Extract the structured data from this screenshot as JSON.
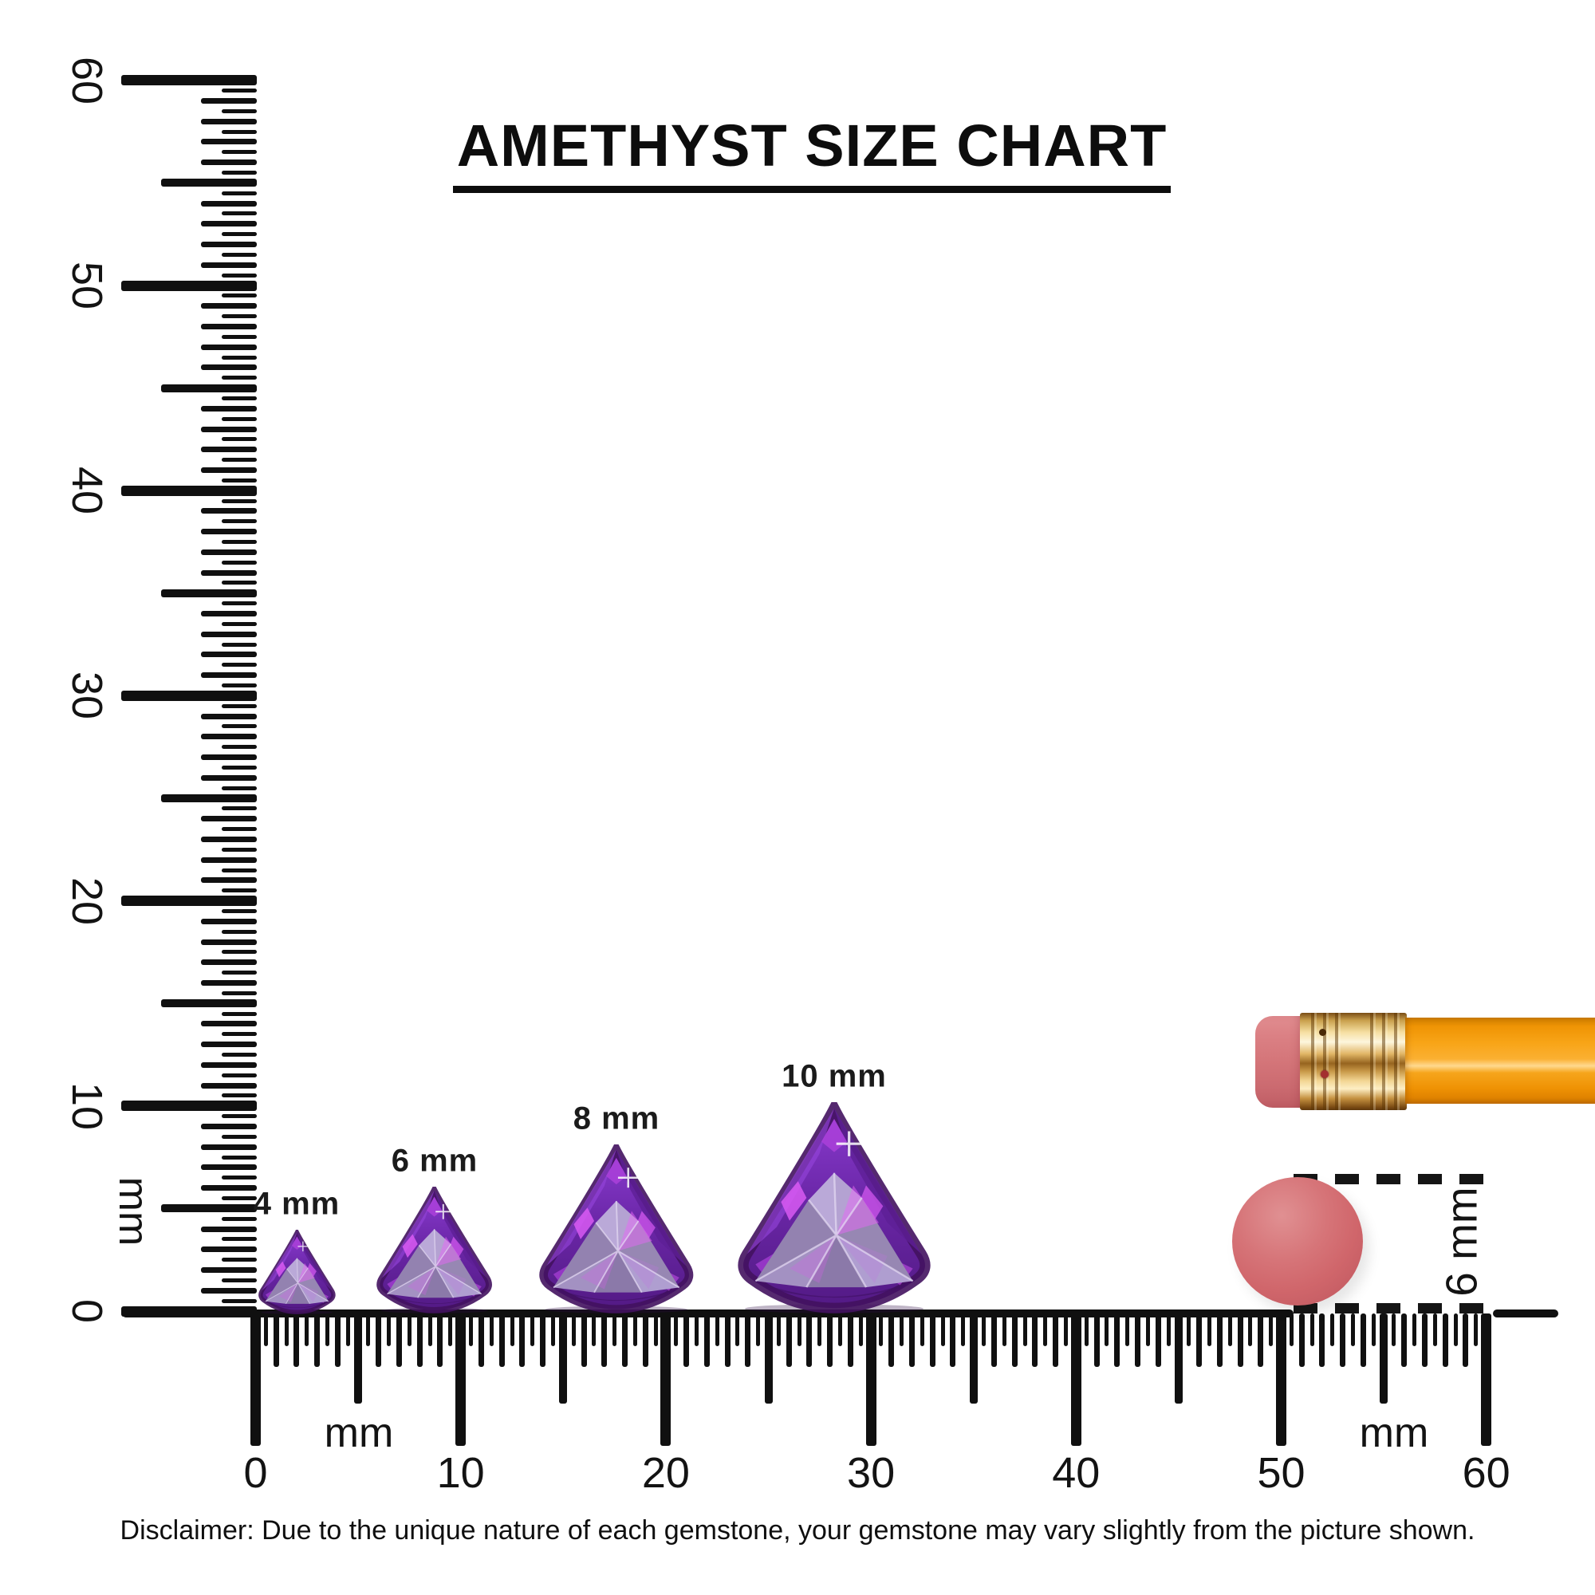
{
  "title": "AMETHYST SIZE CHART",
  "rulers": {
    "unit": "mm",
    "px_per_mm_note": "rulers span 0-60 mm with 0.5 mm ticks",
    "vertical": {
      "tick_labels": [
        "0",
        "10",
        "20",
        "30",
        "40",
        "50",
        "60"
      ],
      "unit_label": "mm",
      "range_mm": [
        0,
        60
      ]
    },
    "horizontal": {
      "tick_labels": [
        "0",
        "10",
        "20",
        "30",
        "40",
        "50",
        "60"
      ],
      "unit_label_left": "mm",
      "unit_label_right": "mm",
      "range_mm": [
        0,
        60
      ]
    }
  },
  "gems": [
    {
      "label": "4 mm",
      "size_mm": 4
    },
    {
      "label": "6 mm",
      "size_mm": 6
    },
    {
      "label": "8 mm",
      "size_mm": 8
    },
    {
      "label": "10 mm",
      "size_mm": 10
    }
  ],
  "eraser_measurement": {
    "label": "6 mm",
    "diameter_mm": 6
  },
  "pencil": {
    "eraser_color": "#d47579",
    "ferrule_color": "#e2b768",
    "body_color": "#f8a518"
  },
  "colors": {
    "ink": "#101010",
    "gem_deep": "#531a85",
    "gem_mid": "#6b27a8",
    "gem_bright": "#8a3bd0",
    "gem_flash": "#d85af2",
    "gem_table_light": "#bcadd6",
    "gem_table_dark": "#8d7ba6",
    "eraser_circle": "#d0666b"
  },
  "disclaimer": "Disclaimer: Due to the unique nature of each gemstone, your gemstone may vary slightly from the picture shown.",
  "chart_data": {
    "type": "table",
    "title": "AMETHYST SIZE CHART",
    "categories": [
      "4 mm",
      "6 mm",
      "8 mm",
      "10 mm"
    ],
    "values": [
      4,
      6,
      8,
      10
    ],
    "units": "mm",
    "cut": "trillion",
    "ruler_range_mm": [
      0,
      60
    ],
    "ruler_tick_step_mm": 0.5,
    "reference_object_diameter_mm": 6
  }
}
